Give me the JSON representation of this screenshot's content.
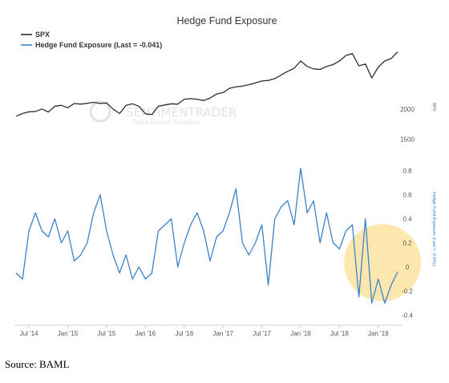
{
  "chart_data": {
    "type": "line",
    "title": "Hedge Fund Exposure",
    "legend_position": "top-left",
    "grid": false,
    "colors": {
      "spx": "#2e2e2e",
      "exposure": "#3a82cc",
      "highlight": "#fbe3a1"
    },
    "x_ticks": [
      "Jul '14",
      "Jan '15",
      "Jul '15",
      "Jan '16",
      "Jul '16",
      "Jan '17",
      "Jul '17",
      "Jan '18",
      "Jul '18",
      "Jan '19"
    ],
    "watermark": {
      "line1": "SENTIMENTRADER",
      "line2": "Data Driven Emotion"
    },
    "panels": {
      "spx": {
        "axis_title": "SPX",
        "y_ticks": [
          "2000",
          "1500"
        ],
        "ylim": [
          1350,
          3000
        ]
      },
      "exposure": {
        "axis_title": "Hedge Fund Exposure (Last = -0.041)",
        "y_ticks": [
          "0.8",
          "0.6",
          "0.4",
          "0.2",
          "0",
          "-0.2",
          "-0.4"
        ],
        "ylim": [
          -0.45,
          0.85
        ]
      }
    },
    "series": [
      {
        "name": "SPX",
        "key": "spx",
        "x": [
          "2014-05",
          "2014-06",
          "2014-07",
          "2014-08",
          "2014-09",
          "2014-10",
          "2014-11",
          "2014-12",
          "2015-01",
          "2015-02",
          "2015-03",
          "2015-04",
          "2015-05",
          "2015-06",
          "2015-07",
          "2015-08",
          "2015-09",
          "2015-10",
          "2015-11",
          "2015-12",
          "2016-01",
          "2016-02",
          "2016-03",
          "2016-04",
          "2016-05",
          "2016-06",
          "2016-07",
          "2016-08",
          "2016-09",
          "2016-10",
          "2016-11",
          "2016-12",
          "2017-01",
          "2017-02",
          "2017-03",
          "2017-04",
          "2017-05",
          "2017-06",
          "2017-07",
          "2017-08",
          "2017-09",
          "2017-10",
          "2017-11",
          "2017-12",
          "2018-01",
          "2018-02",
          "2018-03",
          "2018-04",
          "2018-05",
          "2018-06",
          "2018-07",
          "2018-08",
          "2018-09",
          "2018-10",
          "2018-11",
          "2018-12",
          "2019-01",
          "2019-02",
          "2019-03",
          "2019-04"
        ],
        "values": [
          1880,
          1925,
          1955,
          1960,
          2000,
          1950,
          2045,
          2060,
          2020,
          2090,
          2080,
          2095,
          2110,
          2090,
          2100,
          2000,
          1925,
          2060,
          2085,
          2045,
          1920,
          1910,
          2045,
          2065,
          2085,
          2080,
          2160,
          2170,
          2160,
          2140,
          2180,
          2245,
          2270,
          2340,
          2365,
          2375,
          2400,
          2430,
          2460,
          2470,
          2500,
          2560,
          2620,
          2670,
          2790,
          2700,
          2660,
          2650,
          2700,
          2730,
          2790,
          2880,
          2910,
          2710,
          2740,
          2510,
          2690,
          2790,
          2830,
          2940
        ]
      },
      {
        "name": "Hedge Fund Exposure (Last = -0.041)",
        "key": "exposure",
        "x": [
          "2014-05",
          "2014-06",
          "2014-07",
          "2014-08",
          "2014-09",
          "2014-10",
          "2014-11",
          "2014-12",
          "2015-01",
          "2015-02",
          "2015-03",
          "2015-04",
          "2015-05",
          "2015-06",
          "2015-07",
          "2015-08",
          "2015-09",
          "2015-10",
          "2015-11",
          "2015-12",
          "2016-01",
          "2016-02",
          "2016-03",
          "2016-04",
          "2016-05",
          "2016-06",
          "2016-07",
          "2016-08",
          "2016-09",
          "2016-10",
          "2016-11",
          "2016-12",
          "2017-01",
          "2017-02",
          "2017-03",
          "2017-04",
          "2017-05",
          "2017-06",
          "2017-07",
          "2017-08",
          "2017-09",
          "2017-10",
          "2017-11",
          "2017-12",
          "2018-01",
          "2018-02",
          "2018-03",
          "2018-04",
          "2018-05",
          "2018-06",
          "2018-07",
          "2018-08",
          "2018-09",
          "2018-10",
          "2018-11",
          "2018-12",
          "2019-01",
          "2019-02",
          "2019-03",
          "2019-04"
        ],
        "values": [
          -0.05,
          -0.1,
          0.3,
          0.45,
          0.3,
          0.25,
          0.4,
          0.2,
          0.3,
          0.05,
          0.1,
          0.2,
          0.45,
          0.6,
          0.3,
          0.1,
          -0.05,
          0.1,
          -0.1,
          0.0,
          -0.1,
          -0.05,
          0.3,
          0.35,
          0.4,
          0.0,
          0.2,
          0.35,
          0.45,
          0.3,
          0.05,
          0.25,
          0.3,
          0.45,
          0.65,
          0.2,
          0.1,
          0.2,
          0.35,
          -0.15,
          0.4,
          0.5,
          0.55,
          0.35,
          0.82,
          0.45,
          0.55,
          0.2,
          0.45,
          0.2,
          0.15,
          0.3,
          0.35,
          -0.25,
          0.4,
          -0.3,
          -0.1,
          -0.3,
          -0.15,
          -0.04
        ]
      }
    ]
  },
  "footer": {
    "source": "Source: BAML"
  }
}
